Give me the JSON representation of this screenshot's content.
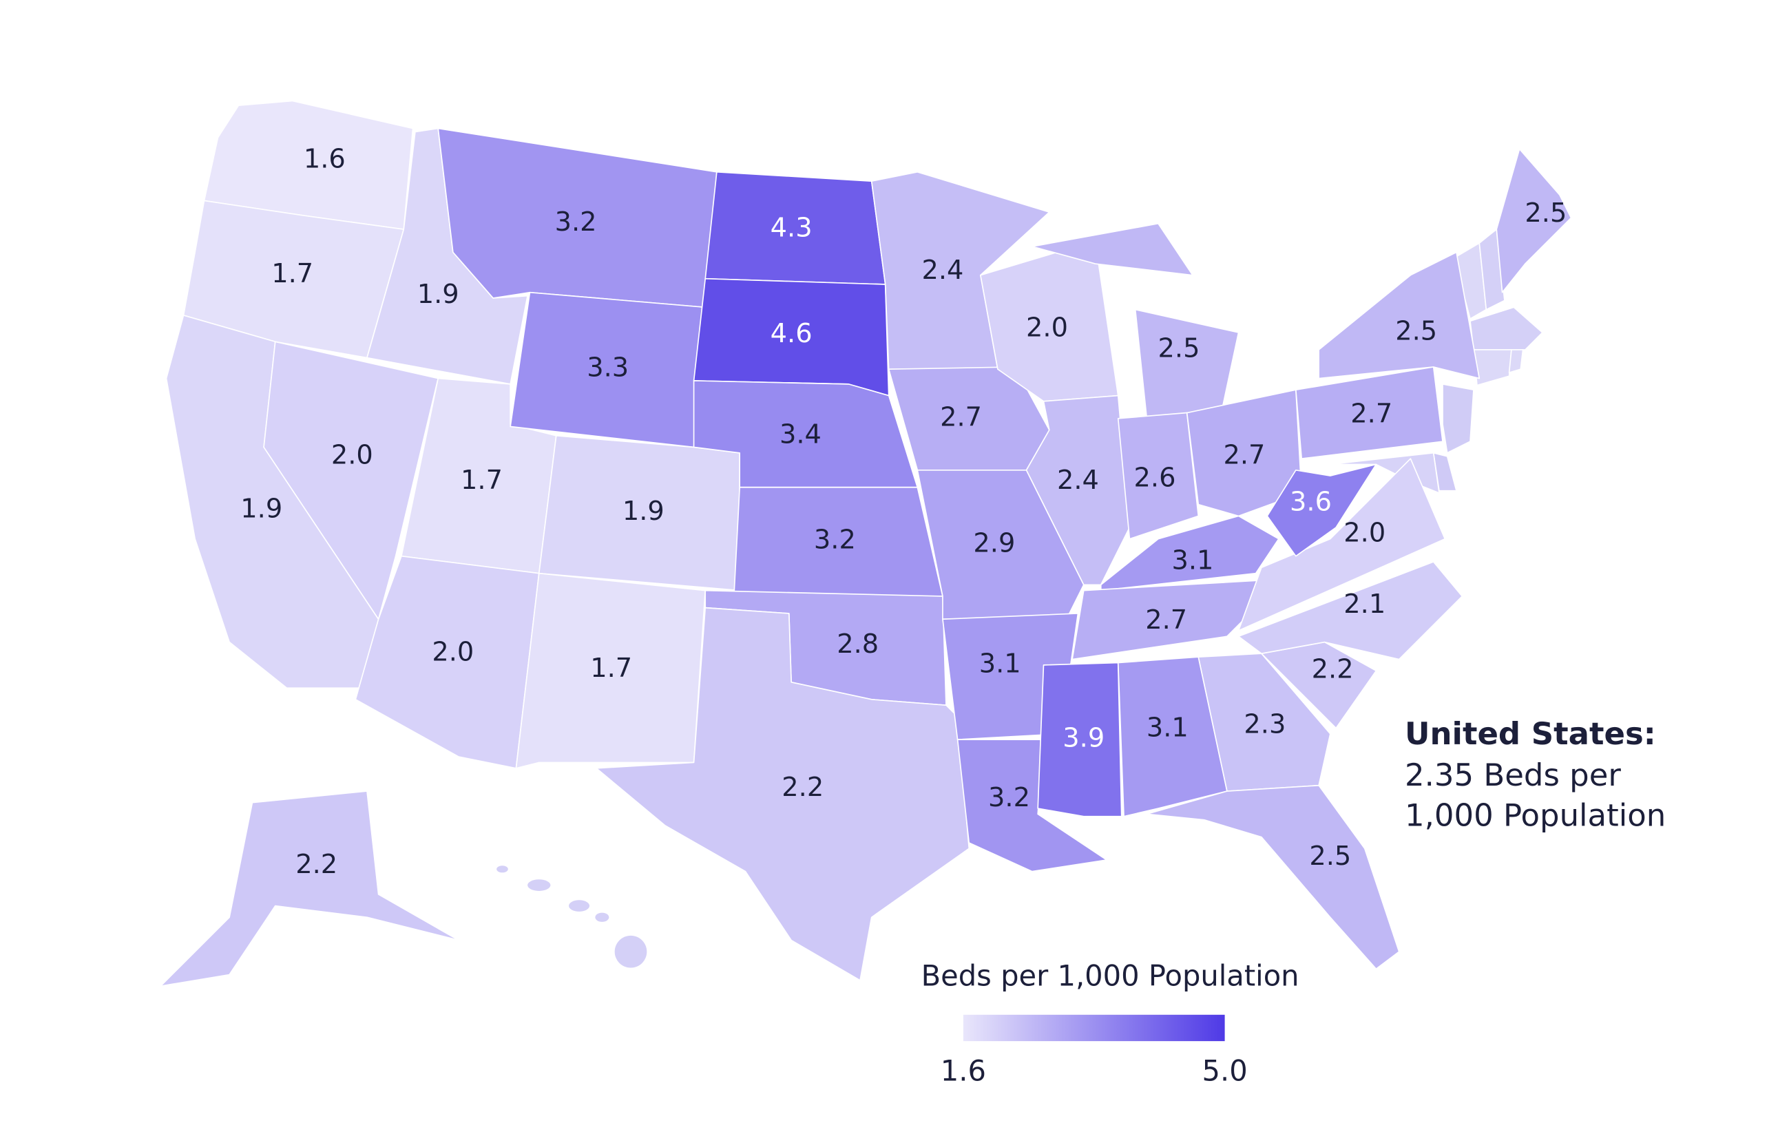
{
  "chart_data": {
    "type": "choropleth",
    "values": [
      1.6,
      1.7,
      1.9,
      1.9,
      2.0,
      1.7,
      2.0,
      3.2,
      3.3,
      1.9,
      1.7,
      4.3,
      4.6,
      3.4,
      3.2,
      2.8,
      2.2,
      2.4,
      2.7,
      2.9,
      3.1,
      3.2,
      2.0,
      2.4,
      2.5,
      2.6,
      2.7,
      3.1,
      2.7,
      3.9,
      3.1,
      2.3,
      2.5,
      2.2,
      2.1,
      2.0,
      3.6,
      2.7,
      2.5,
      2.5,
      2.2
    ],
    "value_labels": [
      "1.6",
      "1.7",
      "1.9",
      "1.9",
      "2.0",
      "1.7",
      "2.0",
      "3.2",
      "3.3",
      "1.9",
      "1.7",
      "4.3",
      "4.6",
      "3.4",
      "3.2",
      "2.8",
      "2.2",
      "2.4",
      "2.7",
      "2.9",
      "3.1",
      "3.2",
      "2.0",
      "2.4",
      "2.5",
      "2.6",
      "2.7",
      "3.1",
      "2.7",
      "3.9",
      "3.1",
      "2.3",
      "2.5",
      "2.2",
      "2.1",
      "2.0",
      "3.6",
      "2.7",
      "2.5",
      "2.5",
      "2.2"
    ],
    "legend_title": "Beds per 1,000 Population",
    "clim": [
      1.6,
      5
    ],
    "cticks": [
      1.6,
      {
        "value": 5,
        "label": "5.0"
      }
    ],
    "colorscale": [
      "#e9e6fb",
      "#4f3ae6"
    ],
    "annotation": {
      "title": "United States:",
      "lines": [
        "2.35 Beds per",
        "1,000 Population"
      ]
    }
  }
}
